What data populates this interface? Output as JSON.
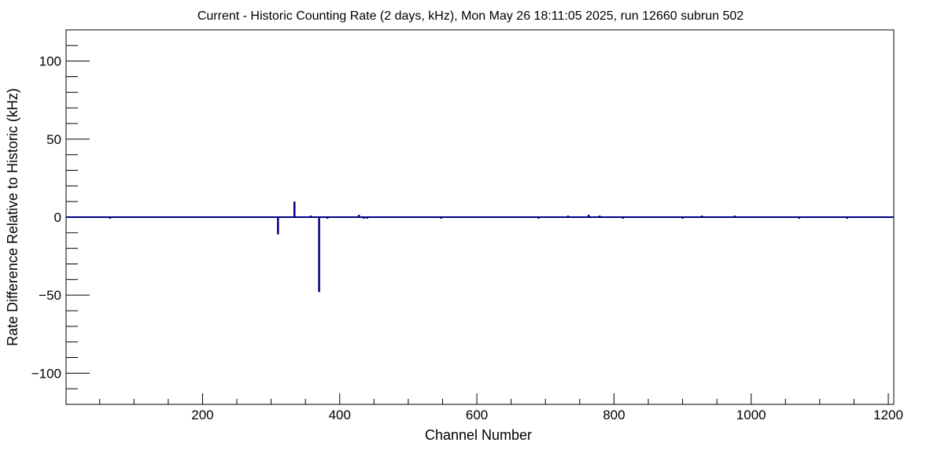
{
  "chart_data": {
    "type": "bar",
    "title": "Current - Historic Counting Rate (2 days, kHz), Mon May 26 18:11:05 2025, run 12660 subrun 502",
    "xlabel": "Channel Number",
    "ylabel": "Rate Difference Relative to Historic (kHz)",
    "xlim": [
      1,
      1208
    ],
    "ylim": [
      -120,
      120
    ],
    "x_major_ticks": [
      200,
      400,
      600,
      800,
      1000,
      1200
    ],
    "y_major_ticks": [
      -100,
      -50,
      0,
      50,
      100
    ],
    "x_tick_labels": [
      "200",
      "400",
      "600",
      "800",
      "1000",
      "1200"
    ],
    "y_tick_labels": [
      "−100",
      "−50",
      "0",
      "50",
      "100"
    ],
    "grid": false,
    "legend": "none",
    "series": [
      {
        "color": "#000080",
        "baseline": 0,
        "x": [
          65,
          310,
          334,
          358,
          370,
          382,
          428,
          435,
          440,
          548,
          690,
          733,
          763,
          779,
          813,
          900,
          928,
          976,
          1070,
          1140
        ],
        "values": [
          -1,
          -11,
          10,
          1,
          -48,
          -1,
          1.5,
          -1,
          -1,
          -1,
          -1,
          1,
          1.5,
          1,
          -1,
          -1,
          1,
          1,
          -1,
          -1
        ]
      }
    ]
  }
}
